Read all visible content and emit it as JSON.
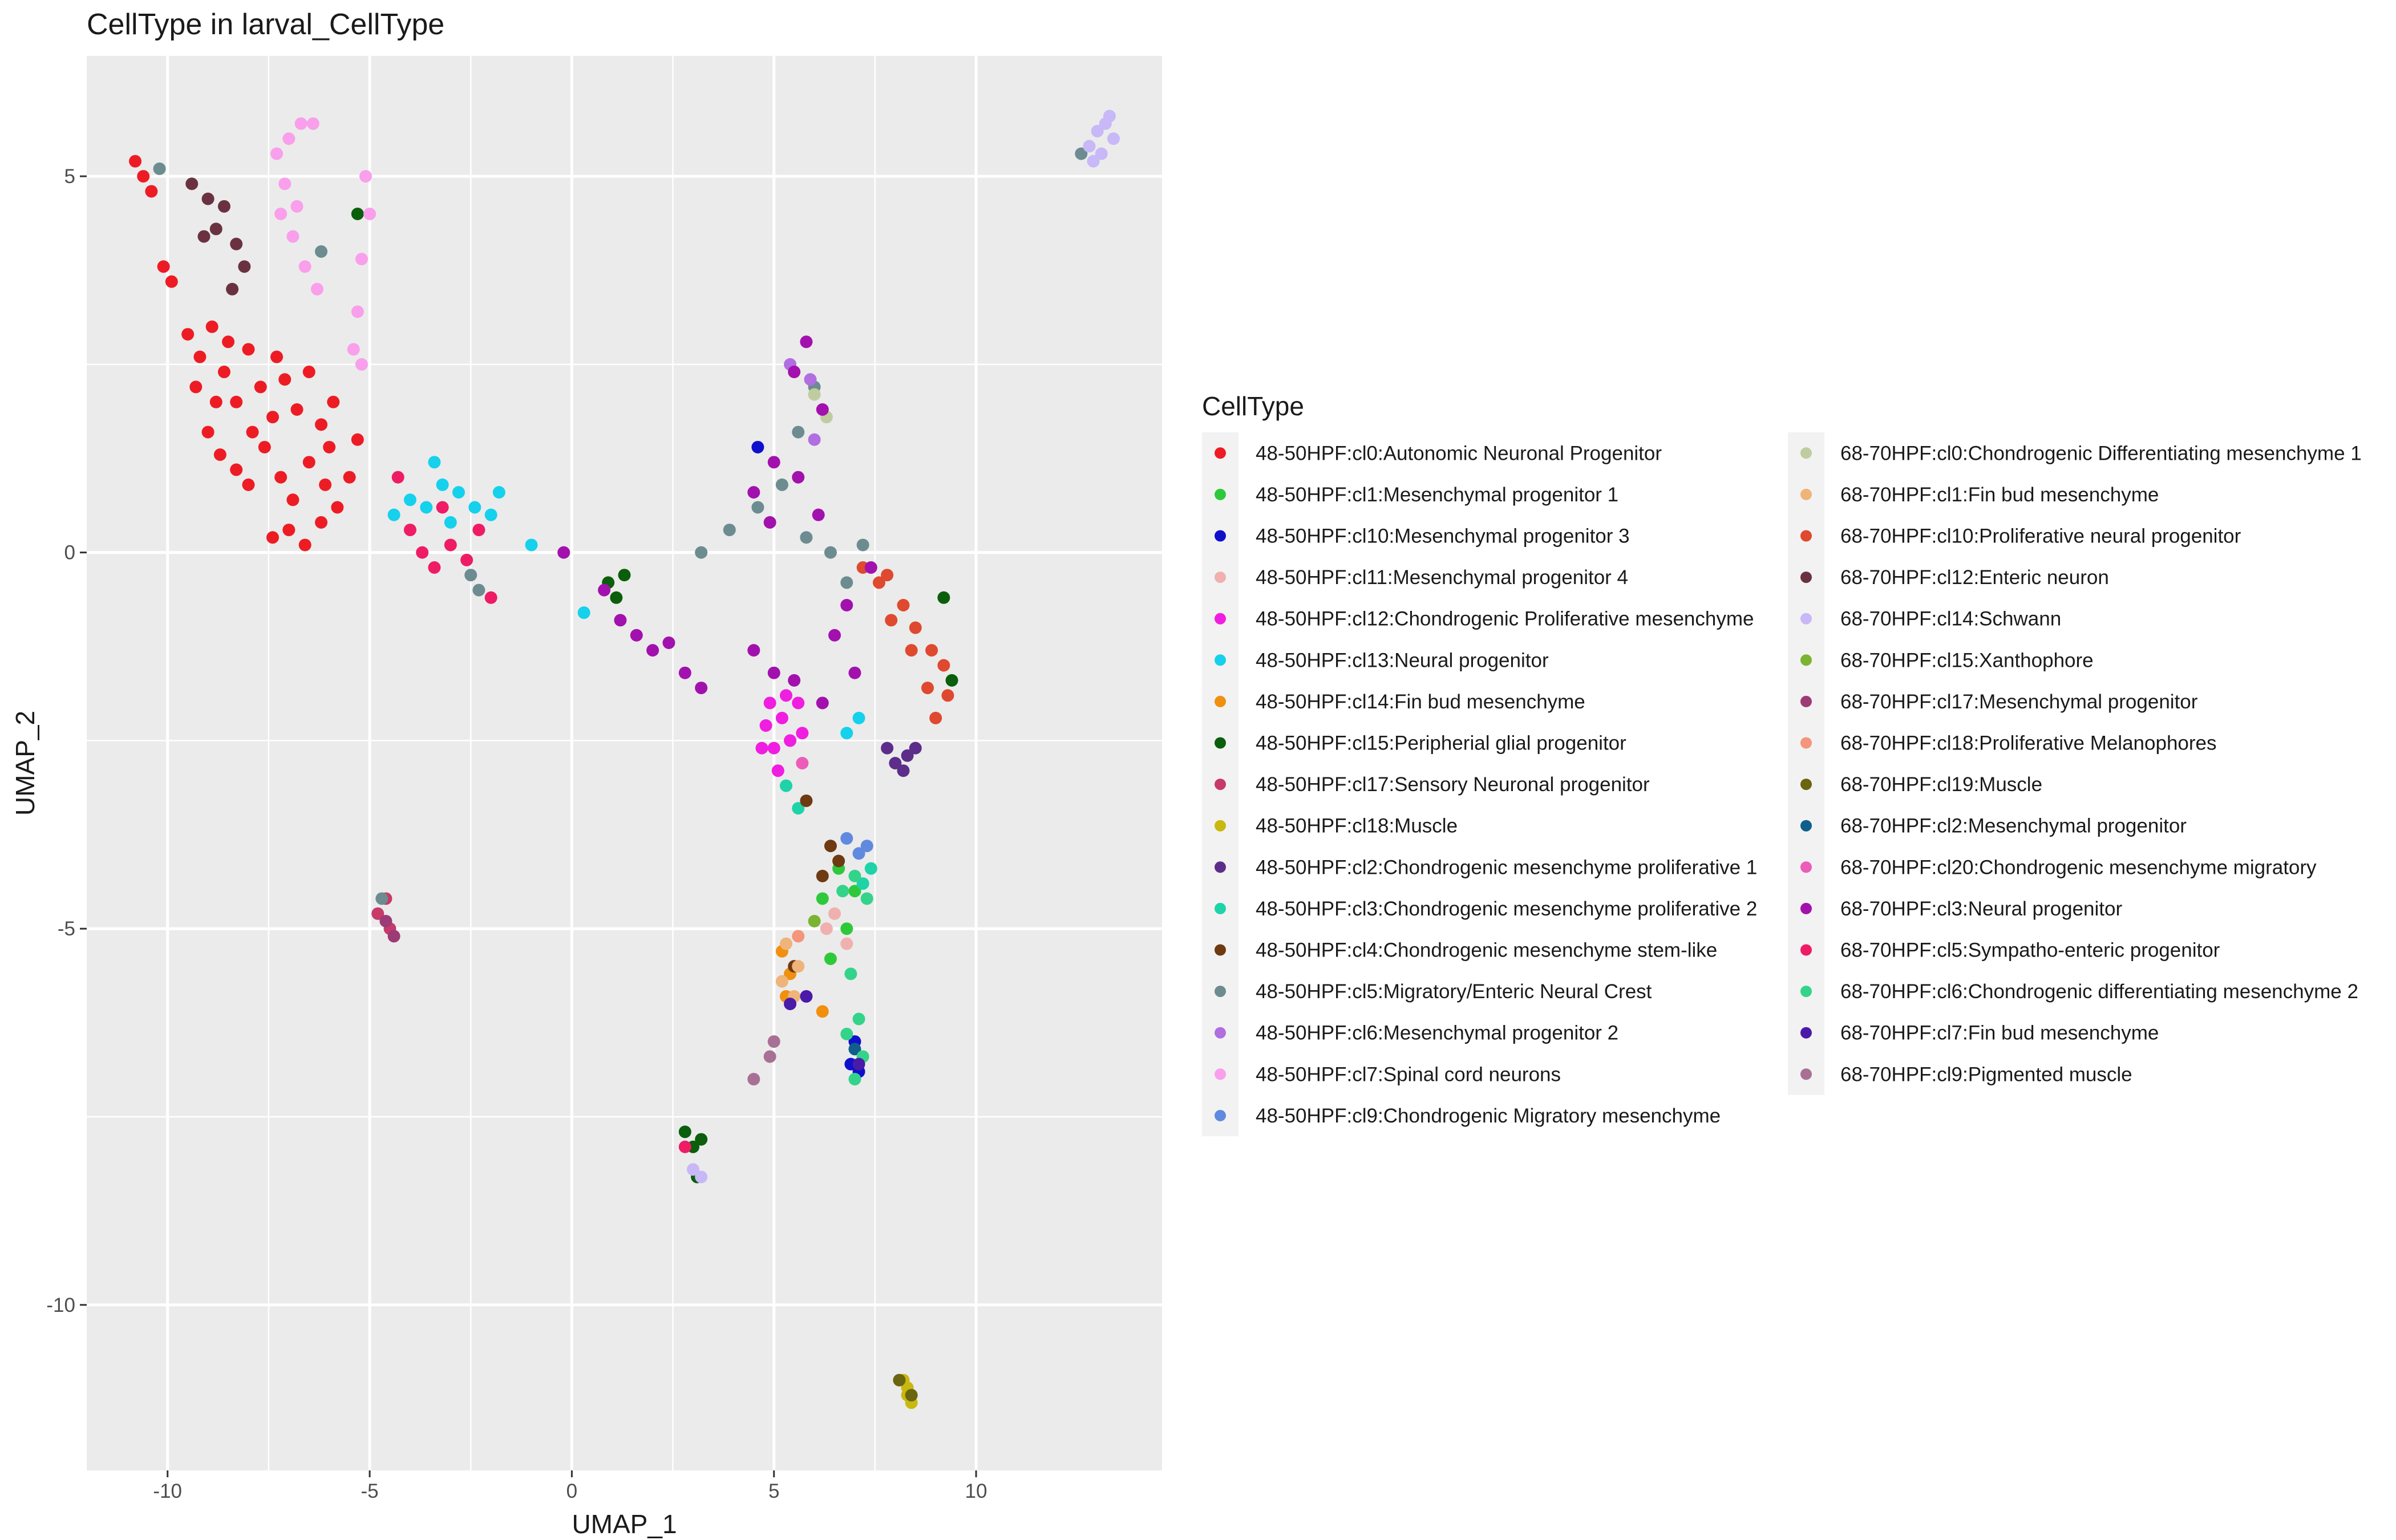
{
  "chart_data": {
    "type": "scatter",
    "title": "CellType in larval_CellType",
    "xlabel": "UMAP_1",
    "ylabel": "UMAP_2",
    "xlim": [
      -12.0,
      14.6
    ],
    "ylim": [
      -12.2,
      6.6
    ],
    "xticks": [
      -10,
      -5,
      0,
      5,
      10
    ],
    "yticks": [
      -10,
      -5,
      0,
      5
    ],
    "xtick_labels": [
      "-10",
      "-5",
      "0",
      "5",
      "10"
    ],
    "ytick_labels": [
      "-10",
      "-5",
      "0",
      "5"
    ],
    "grid": true,
    "legend_title": "CellType",
    "legend_position": "right",
    "series": [
      {
        "name": "48-50HPF:cl0:Autonomic Neuronal Progenitor",
        "color": "#ED1C24",
        "points": [
          [
            -10.8,
            5.2
          ],
          [
            -10.6,
            5.0
          ],
          [
            -10.4,
            4.8
          ],
          [
            -10.1,
            3.8
          ],
          [
            -9.9,
            3.6
          ],
          [
            -9.5,
            2.9
          ],
          [
            -9.2,
            2.6
          ],
          [
            -8.9,
            3.0
          ],
          [
            -8.6,
            2.4
          ],
          [
            -8.3,
            2.0
          ],
          [
            -8.0,
            2.7
          ],
          [
            -7.7,
            2.2
          ],
          [
            -7.4,
            1.8
          ],
          [
            -7.1,
            2.3
          ],
          [
            -6.8,
            1.9
          ],
          [
            -6.5,
            2.4
          ],
          [
            -6.2,
            1.7
          ],
          [
            -5.9,
            2.0
          ],
          [
            -9.0,
            1.6
          ],
          [
            -8.7,
            1.3
          ],
          [
            -8.3,
            1.1
          ],
          [
            -8.0,
            0.9
          ],
          [
            -7.6,
            1.4
          ],
          [
            -7.2,
            1.0
          ],
          [
            -6.9,
            0.7
          ],
          [
            -6.5,
            1.2
          ],
          [
            -6.1,
            0.9
          ],
          [
            -5.8,
            0.6
          ],
          [
            -5.5,
            1.0
          ],
          [
            -7.0,
            0.3
          ],
          [
            -6.6,
            0.1
          ],
          [
            -6.2,
            0.4
          ],
          [
            -7.4,
            0.2
          ],
          [
            -8.8,
            2.0
          ],
          [
            -9.3,
            2.2
          ],
          [
            -7.9,
            1.6
          ],
          [
            -6.0,
            1.4
          ],
          [
            -5.3,
            1.5
          ],
          [
            -7.3,
            2.6
          ],
          [
            -8.5,
            2.8
          ]
        ]
      },
      {
        "name": "48-50HPF:cl1:Mesenchymal progenitor 1",
        "color": "#2EC93B",
        "points": [
          [
            6.2,
            -4.6
          ],
          [
            6.6,
            -4.2
          ],
          [
            7.0,
            -4.5
          ],
          [
            6.8,
            -5.0
          ],
          [
            6.4,
            -5.4
          ]
        ]
      },
      {
        "name": "48-50HPF:cl10:Mesenchymal progenitor 3",
        "color": "#1010CC",
        "points": [
          [
            4.6,
            1.4
          ],
          [
            6.9,
            -6.8
          ],
          [
            7.1,
            -6.9
          ],
          [
            7.0,
            -6.5
          ]
        ]
      },
      {
        "name": "48-50HPF:cl11:Mesenchymal progenitor 4",
        "color": "#F0B0B0",
        "points": [
          [
            6.5,
            -4.8
          ],
          [
            6.8,
            -5.2
          ],
          [
            6.3,
            -5.0
          ]
        ]
      },
      {
        "name": "48-50HPF:cl12:Chondrogenic Proliferative mesenchyme",
        "color": "#F01EE0",
        "points": [
          [
            4.8,
            -2.3
          ],
          [
            5.0,
            -2.6
          ],
          [
            5.2,
            -2.2
          ],
          [
            5.4,
            -2.5
          ],
          [
            5.6,
            -2.0
          ],
          [
            5.1,
            -2.9
          ],
          [
            4.9,
            -2.0
          ],
          [
            5.3,
            -1.9
          ],
          [
            5.7,
            -2.4
          ],
          [
            4.7,
            -2.6
          ]
        ]
      },
      {
        "name": "48-50HPF:cl13:Neural progenitor",
        "color": "#15D1EC",
        "points": [
          [
            -4.4,
            0.5
          ],
          [
            -4.0,
            0.7
          ],
          [
            -3.6,
            0.6
          ],
          [
            -3.2,
            0.9
          ],
          [
            -2.8,
            0.8
          ],
          [
            -2.4,
            0.6
          ],
          [
            -2.0,
            0.5
          ],
          [
            -1.8,
            0.8
          ],
          [
            -3.0,
            0.4
          ],
          [
            -3.4,
            1.2
          ],
          [
            -1.0,
            0.1
          ],
          [
            0.3,
            -0.8
          ],
          [
            6.8,
            -2.4
          ],
          [
            7.1,
            -2.2
          ]
        ]
      },
      {
        "name": "48-50HPF:cl14:Fin bud mesenchyme",
        "color": "#F0900E",
        "points": [
          [
            5.2,
            -5.3
          ],
          [
            5.4,
            -5.6
          ],
          [
            6.2,
            -6.1
          ],
          [
            5.3,
            -5.9
          ]
        ]
      },
      {
        "name": "48-50HPF:cl15:Peripherial glial progenitor",
        "color": "#0B5E0B",
        "points": [
          [
            -5.3,
            4.5
          ],
          [
            0.9,
            -0.4
          ],
          [
            1.1,
            -0.6
          ],
          [
            1.3,
            -0.3
          ],
          [
            2.8,
            -7.7
          ],
          [
            3.0,
            -7.9
          ],
          [
            3.2,
            -7.8
          ],
          [
            3.1,
            -8.3
          ],
          [
            9.4,
            -1.7
          ],
          [
            9.2,
            -0.6
          ]
        ]
      },
      {
        "name": "48-50HPF:cl17:Sensory Neuronal progenitor",
        "color": "#C73A6A",
        "points": [
          [
            -4.8,
            -4.8
          ],
          [
            -4.5,
            -5.0
          ],
          [
            -4.6,
            -4.6
          ]
        ]
      },
      {
        "name": "48-50HPF:cl18:Muscle",
        "color": "#C8B810",
        "points": [
          [
            8.2,
            -11.0
          ],
          [
            8.3,
            -11.2
          ],
          [
            8.4,
            -11.3
          ],
          [
            8.3,
            -11.1
          ]
        ]
      },
      {
        "name": "48-50HPF:cl2:Chondrogenic mesenchyme proliferative 1",
        "color": "#5C2E8A",
        "points": [
          [
            7.8,
            -2.6
          ],
          [
            8.0,
            -2.8
          ],
          [
            8.3,
            -2.7
          ],
          [
            8.5,
            -2.6
          ],
          [
            8.2,
            -2.9
          ]
        ]
      },
      {
        "name": "48-50HPF:cl3:Chondrogenic mesenchyme proliferative 2",
        "color": "#1ED3A8",
        "points": [
          [
            5.3,
            -3.1
          ],
          [
            5.6,
            -3.4
          ],
          [
            7.2,
            -4.4
          ],
          [
            7.4,
            -4.2
          ]
        ]
      },
      {
        "name": "48-50HPF:cl4:Chondrogenic mesenchyme stem-like",
        "color": "#6E3A12",
        "points": [
          [
            5.8,
            -3.3
          ],
          [
            6.4,
            -3.9
          ],
          [
            6.6,
            -4.1
          ],
          [
            6.2,
            -4.3
          ],
          [
            5.5,
            -5.5
          ]
        ]
      },
      {
        "name": "48-50HPF:cl5:Migratory/Enteric Neural Crest",
        "color": "#6C8C90",
        "points": [
          [
            -10.2,
            5.1
          ],
          [
            -6.2,
            4.0
          ],
          [
            -4.7,
            -4.6
          ],
          [
            3.2,
            0.0
          ],
          [
            3.9,
            0.3
          ],
          [
            4.6,
            0.6
          ],
          [
            5.2,
            0.9
          ],
          [
            5.6,
            1.6
          ],
          [
            6.0,
            2.2
          ],
          [
            5.8,
            0.2
          ],
          [
            6.4,
            0.0
          ],
          [
            6.8,
            -0.4
          ],
          [
            7.2,
            0.1
          ],
          [
            12.6,
            5.3
          ],
          [
            -2.5,
            -0.3
          ],
          [
            -2.3,
            -0.5
          ]
        ]
      },
      {
        "name": "48-50HPF:cl6:Mesenchymal progenitor 2",
        "color": "#B06EE0",
        "points": [
          [
            5.9,
            2.3
          ],
          [
            5.4,
            2.5
          ],
          [
            6.0,
            1.5
          ]
        ]
      },
      {
        "name": "48-50HPF:cl7:Spinal cord neurons",
        "color": "#F99FEB",
        "points": [
          [
            -7.1,
            4.9
          ],
          [
            -7.3,
            5.3
          ],
          [
            -7.0,
            5.5
          ],
          [
            -6.7,
            5.7
          ],
          [
            -6.4,
            5.7
          ],
          [
            -7.2,
            4.5
          ],
          [
            -6.9,
            4.2
          ],
          [
            -6.6,
            3.8
          ],
          [
            -6.3,
            3.5
          ],
          [
            -5.1,
            5.0
          ],
          [
            -5.0,
            4.5
          ],
          [
            -5.2,
            3.9
          ],
          [
            -5.3,
            3.2
          ],
          [
            -5.4,
            2.7
          ],
          [
            -5.2,
            2.5
          ],
          [
            -6.8,
            4.6
          ]
        ]
      },
      {
        "name": "48-50HPF:cl9:Chondrogenic Migratory mesenchyme",
        "color": "#5F8ADF",
        "points": [
          [
            6.8,
            -3.8
          ],
          [
            7.1,
            -4.0
          ],
          [
            7.3,
            -3.9
          ]
        ]
      },
      {
        "name": "68-70HPF:cl0:Chondrogenic Differentiating mesenchyme 1",
        "color": "#BFCCA0",
        "points": [
          [
            6.0,
            2.1
          ],
          [
            6.3,
            1.8
          ]
        ]
      },
      {
        "name": "68-70HPF:cl1:Fin bud mesenchyme",
        "color": "#EEB47A",
        "points": [
          [
            5.3,
            -5.2
          ],
          [
            5.6,
            -5.5
          ],
          [
            5.2,
            -5.7
          ],
          [
            5.5,
            -5.9
          ]
        ]
      },
      {
        "name": "68-70HPF:cl10:Proliferative neural progenitor",
        "color": "#DF4930",
        "points": [
          [
            7.2,
            -0.2
          ],
          [
            7.6,
            -0.4
          ],
          [
            7.9,
            -0.9
          ],
          [
            8.2,
            -0.7
          ],
          [
            8.5,
            -1.0
          ],
          [
            8.9,
            -1.3
          ],
          [
            9.2,
            -1.5
          ],
          [
            9.3,
            -1.9
          ],
          [
            8.8,
            -1.8
          ],
          [
            9.0,
            -2.2
          ],
          [
            7.8,
            -0.3
          ],
          [
            8.4,
            -1.3
          ]
        ]
      },
      {
        "name": "68-70HPF:cl12:Enteric neuron",
        "color": "#6A3240",
        "points": [
          [
            -9.4,
            4.9
          ],
          [
            -9.0,
            4.7
          ],
          [
            -8.6,
            4.6
          ],
          [
            -8.8,
            4.3
          ],
          [
            -8.3,
            4.1
          ],
          [
            -8.1,
            3.8
          ],
          [
            -9.1,
            4.2
          ],
          [
            -8.4,
            3.5
          ]
        ]
      },
      {
        "name": "68-70HPF:cl14:Schwann",
        "color": "#C8B8F8",
        "points": [
          [
            12.8,
            5.4
          ],
          [
            13.0,
            5.6
          ],
          [
            13.2,
            5.7
          ],
          [
            13.4,
            5.5
          ],
          [
            12.9,
            5.2
          ],
          [
            13.1,
            5.3
          ],
          [
            13.3,
            5.8
          ],
          [
            3.0,
            -8.2
          ],
          [
            3.2,
            -8.3
          ]
        ]
      },
      {
        "name": "68-70HPF:cl15:Xanthophore",
        "color": "#7BB432",
        "points": [
          [
            6.0,
            -4.9
          ]
        ]
      },
      {
        "name": "68-70HPF:cl17:Mesenchymal progenitor",
        "color": "#9C3B75",
        "points": [
          [
            -4.6,
            -4.9
          ],
          [
            -4.4,
            -5.1
          ]
        ]
      },
      {
        "name": "68-70HPF:cl18:Proliferative Melanophores",
        "color": "#F4957C",
        "points": [
          [
            5.6,
            -5.1
          ]
        ]
      },
      {
        "name": "68-70HPF:cl19:Muscle",
        "color": "#6B6410",
        "points": [
          [
            8.1,
            -11.0
          ],
          [
            8.4,
            -11.2
          ]
        ]
      },
      {
        "name": "68-70HPF:cl2:Mesenchymal progenitor",
        "color": "#0F5E8C",
        "points": [
          [
            7.0,
            -6.6
          ]
        ]
      },
      {
        "name": "68-70HPF:cl20:Chondrogenic mesenchyme migratory",
        "color": "#EC5CB8",
        "points": [
          [
            5.7,
            -2.8
          ]
        ]
      },
      {
        "name": "68-70HPF:cl3:Neural progenitor",
        "color": "#A211AD",
        "points": [
          [
            5.8,
            2.8
          ],
          [
            5.5,
            2.4
          ],
          [
            6.2,
            1.9
          ],
          [
            5.0,
            1.2
          ],
          [
            4.5,
            0.8
          ],
          [
            4.9,
            0.4
          ],
          [
            5.6,
            1.0
          ],
          [
            6.1,
            0.5
          ],
          [
            0.8,
            -0.5
          ],
          [
            1.2,
            -0.9
          ],
          [
            1.6,
            -1.1
          ],
          [
            2.0,
            -1.3
          ],
          [
            2.4,
            -1.2
          ],
          [
            2.8,
            -1.6
          ],
          [
            3.2,
            -1.8
          ],
          [
            -0.2,
            0.0
          ],
          [
            4.5,
            -1.3
          ],
          [
            5.0,
            -1.6
          ],
          [
            5.5,
            -1.7
          ],
          [
            6.2,
            -2.0
          ],
          [
            6.5,
            -1.1
          ],
          [
            6.8,
            -0.7
          ],
          [
            7.4,
            -0.2
          ],
          [
            7.0,
            -1.6
          ]
        ]
      },
      {
        "name": "68-70HPF:cl5:Sympatho-enteric progenitor",
        "color": "#EE1C65",
        "points": [
          [
            -4.0,
            0.3
          ],
          [
            -3.7,
            0.0
          ],
          [
            -3.4,
            -0.2
          ],
          [
            -3.0,
            0.1
          ],
          [
            -2.6,
            -0.1
          ],
          [
            -2.3,
            0.3
          ],
          [
            -3.2,
            0.6
          ],
          [
            -2.0,
            -0.6
          ],
          [
            -4.3,
            1.0
          ],
          [
            2.8,
            -7.9
          ]
        ]
      },
      {
        "name": "68-70HPF:cl6:Chondrogenic differentiating mesenchyme 2",
        "color": "#34D38A",
        "points": [
          [
            6.7,
            -4.5
          ],
          [
            7.0,
            -4.3
          ],
          [
            7.3,
            -4.6
          ],
          [
            6.9,
            -5.6
          ],
          [
            7.1,
            -6.2
          ],
          [
            6.8,
            -6.4
          ],
          [
            7.2,
            -6.7
          ],
          [
            7.0,
            -7.0
          ]
        ]
      },
      {
        "name": "68-70HPF:cl7:Fin bud mesenchyme",
        "color": "#4A1AA8",
        "points": [
          [
            5.4,
            -6.0
          ],
          [
            5.8,
            -5.9
          ],
          [
            7.1,
            -6.8
          ]
        ]
      },
      {
        "name": "68-70HPF:cl9:Pigmented muscle",
        "color": "#A87095",
        "points": [
          [
            4.5,
            -7.0
          ],
          [
            4.9,
            -6.7
          ],
          [
            5.0,
            -6.5
          ]
        ]
      }
    ]
  }
}
